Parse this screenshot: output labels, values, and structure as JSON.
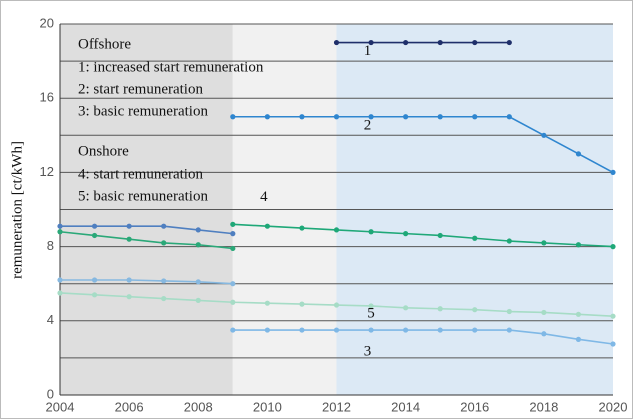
{
  "chart_data": {
    "type": "line",
    "ylabel": "remuneration [ct/kWh]",
    "xlim": [
      2004,
      2020
    ],
    "ylim": [
      0,
      20
    ],
    "xticks": [
      2004,
      2006,
      2008,
      2010,
      2012,
      2014,
      2016,
      2018,
      2020
    ],
    "yticks": [
      0,
      4,
      8,
      12,
      16,
      20
    ],
    "ygrid": [
      2,
      4,
      6,
      8,
      10,
      12,
      14,
      16,
      18,
      20
    ],
    "shaded_regions": [
      {
        "from": 2004,
        "to": 2009,
        "color": "#dedede"
      },
      {
        "from": 2009,
        "to": 2012,
        "color": "#f1f1f1"
      },
      {
        "from": 2012,
        "to": 2020,
        "color": "#dce9f5"
      }
    ],
    "legend": [
      {
        "title": "Offshore",
        "items": [
          "1: increased start remuneration",
          "2: start remuneration",
          "3: basic remuneration"
        ]
      },
      {
        "title": "Onshore",
        "items": [
          "4: start remuneration",
          "5: basic remuneration"
        ]
      }
    ],
    "series": [
      {
        "color": "#4f7fc0",
        "x": [
          2004,
          2005,
          2006,
          2007,
          2008,
          2009
        ],
        "values": [
          9.1,
          9.1,
          9.1,
          9.1,
          8.9,
          8.7
        ]
      },
      {
        "label": "1",
        "color": "#1f2f6a",
        "x": [
          2012,
          2013,
          2014,
          2015,
          2016,
          2017
        ],
        "values": [
          19,
          19,
          19,
          19,
          19,
          19
        ]
      },
      {
        "label": "2",
        "color": "#2f86cf",
        "x": [
          2009,
          2010,
          2011,
          2012,
          2013,
          2014,
          2015,
          2016,
          2017,
          2018,
          2019,
          2020
        ],
        "values": [
          15,
          15,
          15,
          15,
          15,
          15,
          15,
          15,
          15,
          14,
          13,
          12
        ]
      },
      {
        "label": "3",
        "color": "#7fb8e6",
        "x": [
          2009,
          2010,
          2011,
          2012,
          2013,
          2014,
          2015,
          2016,
          2017,
          2018,
          2019,
          2020
        ],
        "values": [
          3.5,
          3.5,
          3.5,
          3.5,
          3.5,
          3.5,
          3.5,
          3.5,
          3.5,
          3.3,
          3.0,
          2.75
        ]
      },
      {
        "color": "#2aa878",
        "x": [
          2004,
          2005,
          2006,
          2007,
          2008,
          2009
        ],
        "values": [
          8.8,
          8.6,
          8.4,
          8.2,
          8.1,
          7.9
        ]
      },
      {
        "label": "4",
        "color": "#1fa878",
        "x": [
          2009,
          2010,
          2011,
          2012,
          2013,
          2014,
          2015,
          2016,
          2017,
          2018,
          2019,
          2020
        ],
        "values": [
          9.2,
          9.1,
          9.0,
          8.9,
          8.8,
          8.7,
          8.6,
          8.45,
          8.3,
          8.2,
          8.1,
          8.0
        ]
      },
      {
        "color": "#86b8e0",
        "x": [
          2004,
          2005,
          2006,
          2007,
          2008,
          2009
        ],
        "values": [
          6.2,
          6.2,
          6.2,
          6.15,
          6.1,
          6.0
        ]
      },
      {
        "label": "5",
        "color": "#a6dcc6",
        "x": [
          2004,
          2005,
          2006,
          2007,
          2008,
          2009,
          2010,
          2011,
          2012,
          2013,
          2014,
          2015,
          2016,
          2017,
          2018,
          2019,
          2020
        ],
        "values": [
          5.5,
          5.4,
          5.3,
          5.2,
          5.1,
          5.0,
          4.95,
          4.9,
          4.85,
          4.8,
          4.7,
          4.65,
          4.6,
          4.5,
          4.45,
          4.35,
          4.25
        ]
      }
    ]
  }
}
